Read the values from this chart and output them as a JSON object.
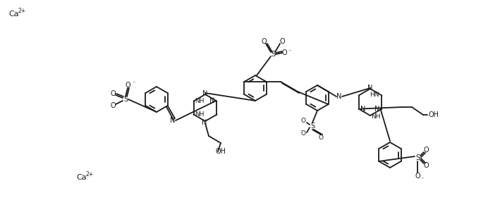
{
  "background_color": "#ffffff",
  "line_color": "#1a1a1a",
  "linewidth": 1.3,
  "fontsize": 7.0,
  "figsize": [
    7.09,
    2.91
  ],
  "dpi": 100,
  "ca1": [
    12,
    18
  ],
  "ca2": [
    108,
    248
  ]
}
